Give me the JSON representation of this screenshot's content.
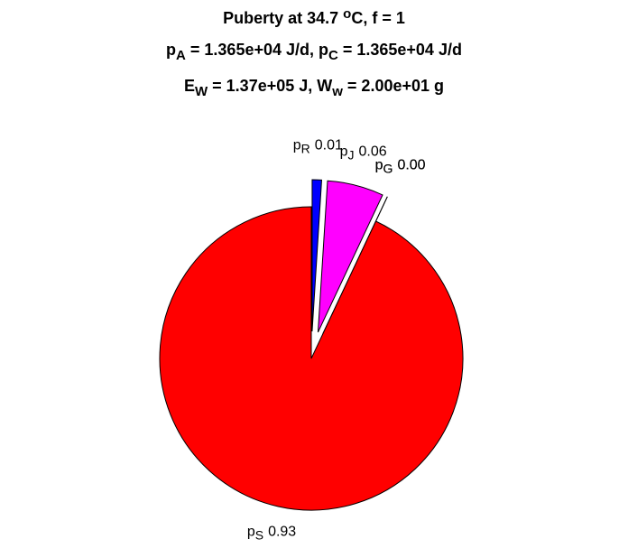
{
  "chart_data": {
    "type": "pie",
    "title": [
      [
        {
          "text": "Puberty at 34.7 "
        },
        {
          "text": "o",
          "pos": "super"
        },
        {
          "text": "C, f = 1"
        }
      ],
      [
        {
          "text": "p"
        },
        {
          "text": "A",
          "pos": "sub"
        },
        {
          "text": " = 1.365e+04 J/d,  p"
        },
        {
          "text": "C",
          "pos": "sub"
        },
        {
          "text": " = 1.365e+04 J/d"
        }
      ],
      [
        {
          "text": "E"
        },
        {
          "text": "W",
          "pos": "sub"
        },
        {
          "text": " = 1.37e+05 J, W"
        },
        {
          "text": "w",
          "pos": "sub"
        },
        {
          "text": " = 2.00e+01 g"
        }
      ]
    ],
    "categories": [
      {
        "symbol": "p",
        "subscript": "R"
      },
      {
        "symbol": "p",
        "subscript": "J"
      },
      {
        "symbol": "p",
        "subscript": "G"
      },
      {
        "symbol": "p",
        "subscript": "G"
      },
      {
        "symbol": "p",
        "subscript": "S"
      }
    ],
    "values": [
      0.01,
      0.06,
      0.0,
      0.0,
      0.93
    ],
    "value_labels": [
      "0.01",
      "0.06",
      "0.00",
      "0.00",
      "0.93"
    ],
    "colors": [
      "#0000ff",
      "#ff00ff",
      "#ffffff",
      "#ffffff",
      "#ff0000"
    ],
    "explode": [
      1,
      1,
      1,
      1,
      0
    ]
  }
}
